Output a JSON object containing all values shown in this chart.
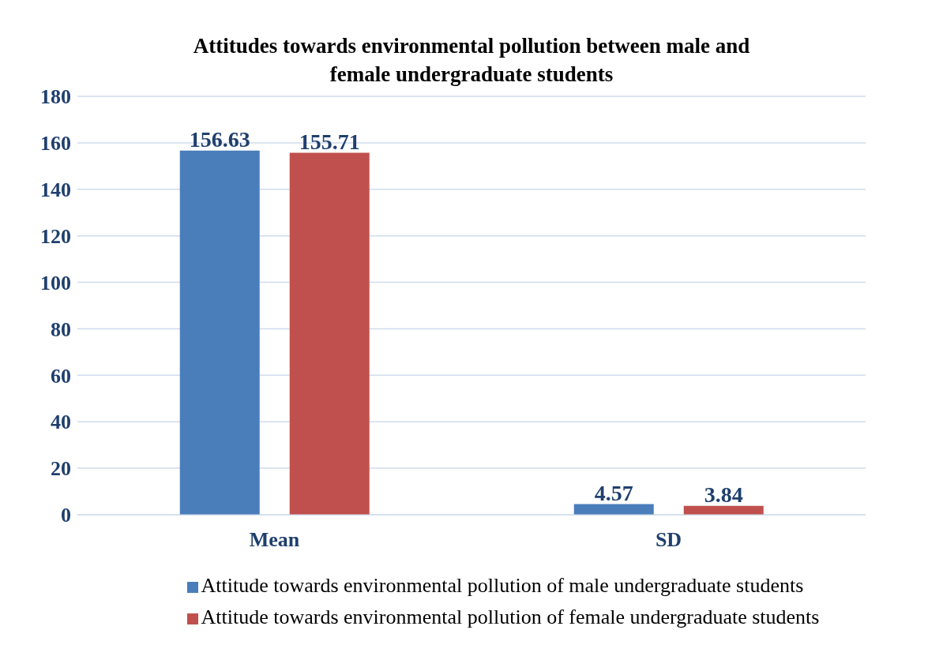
{
  "chart_data": {
    "type": "bar",
    "title": "Attitudes towards environmental pollution between male and female undergraduate students",
    "categories": [
      "Mean",
      "SD"
    ],
    "series": [
      {
        "name": "Attitude towards environmental pollution of male undergraduate students",
        "color": "#4a7ebb",
        "values": [
          156.63,
          4.57
        ]
      },
      {
        "name": "Attitude towards environmental pollution of female undergraduate students",
        "color": "#c0504d",
        "values": [
          155.71,
          3.84
        ]
      }
    ],
    "ylim": [
      0,
      180
    ],
    "yticks": [
      0,
      20,
      40,
      60,
      80,
      100,
      120,
      140,
      160,
      180
    ],
    "grid": "y",
    "legend": "bottom",
    "data_labels": true
  }
}
